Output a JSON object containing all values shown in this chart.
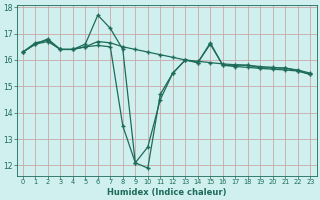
{
  "xlabel": "Humidex (Indice chaleur)",
  "background_color": "#cff0ee",
  "grid_color": "#c8a8a8",
  "line_color": "#1e6b5a",
  "ylim": [
    11.6,
    18.1
  ],
  "xlim": [
    -0.5,
    23.5
  ],
  "yticks": [
    12,
    13,
    14,
    15,
    16,
    17,
    18
  ],
  "xticks": [
    0,
    1,
    2,
    3,
    4,
    5,
    6,
    7,
    8,
    9,
    10,
    11,
    12,
    13,
    14,
    15,
    16,
    17,
    18,
    19,
    20,
    21,
    22,
    23
  ],
  "line1_x": [
    0,
    1,
    2,
    3,
    4,
    5,
    6,
    7,
    8,
    9,
    10,
    11,
    12,
    13,
    14,
    15,
    16,
    17,
    18,
    19,
    20,
    21,
    22,
    23
  ],
  "line1_y": [
    16.3,
    16.6,
    16.8,
    16.4,
    16.4,
    16.6,
    17.7,
    17.2,
    16.4,
    12.1,
    11.9,
    14.7,
    15.5,
    16.0,
    15.9,
    16.6,
    15.8,
    15.8,
    15.8,
    15.7,
    15.7,
    15.7,
    15.6,
    15.45
  ],
  "line2_x": [
    0,
    1,
    2,
    3,
    4,
    5,
    6,
    7,
    8,
    9,
    10,
    11,
    12,
    13,
    14,
    15,
    16,
    17,
    18,
    19,
    20,
    21,
    22,
    23
  ],
  "line2_y": [
    16.3,
    16.6,
    16.7,
    16.4,
    16.4,
    16.5,
    16.7,
    16.65,
    16.5,
    16.4,
    16.3,
    16.2,
    16.1,
    16.0,
    15.95,
    15.9,
    15.85,
    15.82,
    15.8,
    15.75,
    15.72,
    15.68,
    15.62,
    15.5
  ],
  "line3_x": [
    0,
    1,
    2,
    3,
    4,
    5,
    6,
    7,
    8,
    9,
    10,
    11,
    12,
    13,
    14,
    15,
    16,
    17,
    18,
    19,
    20,
    21,
    22,
    23
  ],
  "line3_y": [
    16.3,
    16.65,
    16.75,
    16.4,
    16.4,
    16.5,
    16.55,
    16.5,
    13.5,
    12.1,
    12.7,
    14.5,
    15.5,
    16.0,
    15.9,
    16.65,
    15.8,
    15.75,
    15.72,
    15.68,
    15.65,
    15.62,
    15.58,
    15.45
  ]
}
